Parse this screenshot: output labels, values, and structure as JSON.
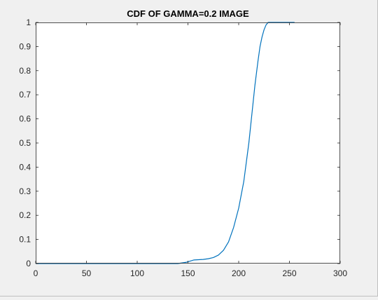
{
  "figure": {
    "background": "#f0f0f0",
    "axes_background": "#ffffff",
    "axes_color": "#262626"
  },
  "chart_data": {
    "type": "line",
    "title": "CDF OF GAMMA=0.2 IMAGE",
    "xlabel": "",
    "ylabel": "",
    "xlim": [
      0,
      300
    ],
    "ylim": [
      0,
      1
    ],
    "x_ticks": [
      0,
      50,
      100,
      150,
      200,
      250,
      300
    ],
    "x_tick_labels": [
      "0",
      "50",
      "100",
      "150",
      "200",
      "250",
      "300"
    ],
    "y_ticks": [
      0,
      0.1,
      0.2,
      0.3,
      0.4,
      0.5,
      0.6,
      0.7,
      0.8,
      0.9,
      1
    ],
    "y_tick_labels": [
      "0",
      "0.1",
      "0.2",
      "0.3",
      "0.4",
      "0.5",
      "0.6",
      "0.7",
      "0.8",
      "0.9",
      "1"
    ],
    "grid": false,
    "legend": "none",
    "series": [
      {
        "color": "#0072bd",
        "x": [
          0,
          140,
          148,
          152,
          156,
          165,
          170,
          175,
          180,
          185,
          190,
          195,
          200,
          205,
          210,
          213,
          216,
          219,
          221,
          223,
          225,
          227,
          229,
          231,
          240,
          255
        ],
        "y": [
          0,
          0,
          0.005,
          0.01,
          0.015,
          0.017,
          0.02,
          0.025,
          0.035,
          0.055,
          0.09,
          0.15,
          0.23,
          0.34,
          0.5,
          0.62,
          0.74,
          0.84,
          0.9,
          0.94,
          0.97,
          0.99,
          1,
          1,
          1,
          1
        ]
      }
    ]
  }
}
